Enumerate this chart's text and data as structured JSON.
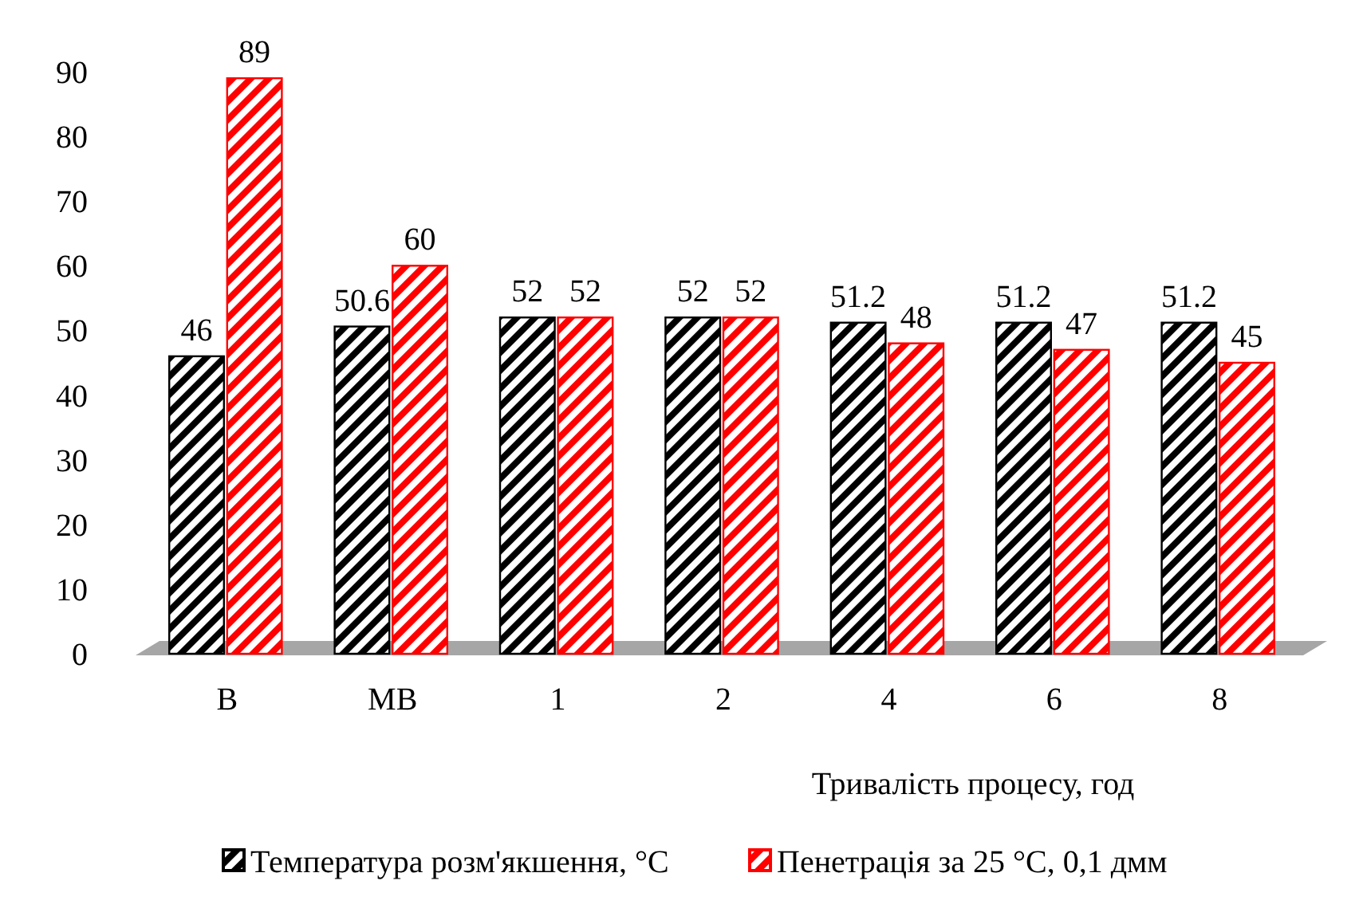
{
  "chart_data": {
    "type": "bar",
    "categories": [
      "B",
      "MB",
      "1",
      "2",
      "4",
      "6",
      "8"
    ],
    "series": [
      {
        "name": "Температура розм'якшення, °С",
        "color": "#000000",
        "values": [
          46,
          50.6,
          52,
          52,
          51.2,
          51.2,
          51.2
        ]
      },
      {
        "name": "Пенетрація за 25 °С, 0,1 дмм",
        "color": "#ff0000",
        "values": [
          89,
          60,
          52,
          52,
          48,
          47,
          45
        ]
      }
    ],
    "xlabel": "Тривалість процесу, год",
    "ylim": [
      0,
      90
    ],
    "yticks": [
      0,
      10,
      20,
      30,
      40,
      50,
      60,
      70,
      80,
      90
    ],
    "grid": false,
    "legend": "bottom",
    "data_labels": true
  }
}
